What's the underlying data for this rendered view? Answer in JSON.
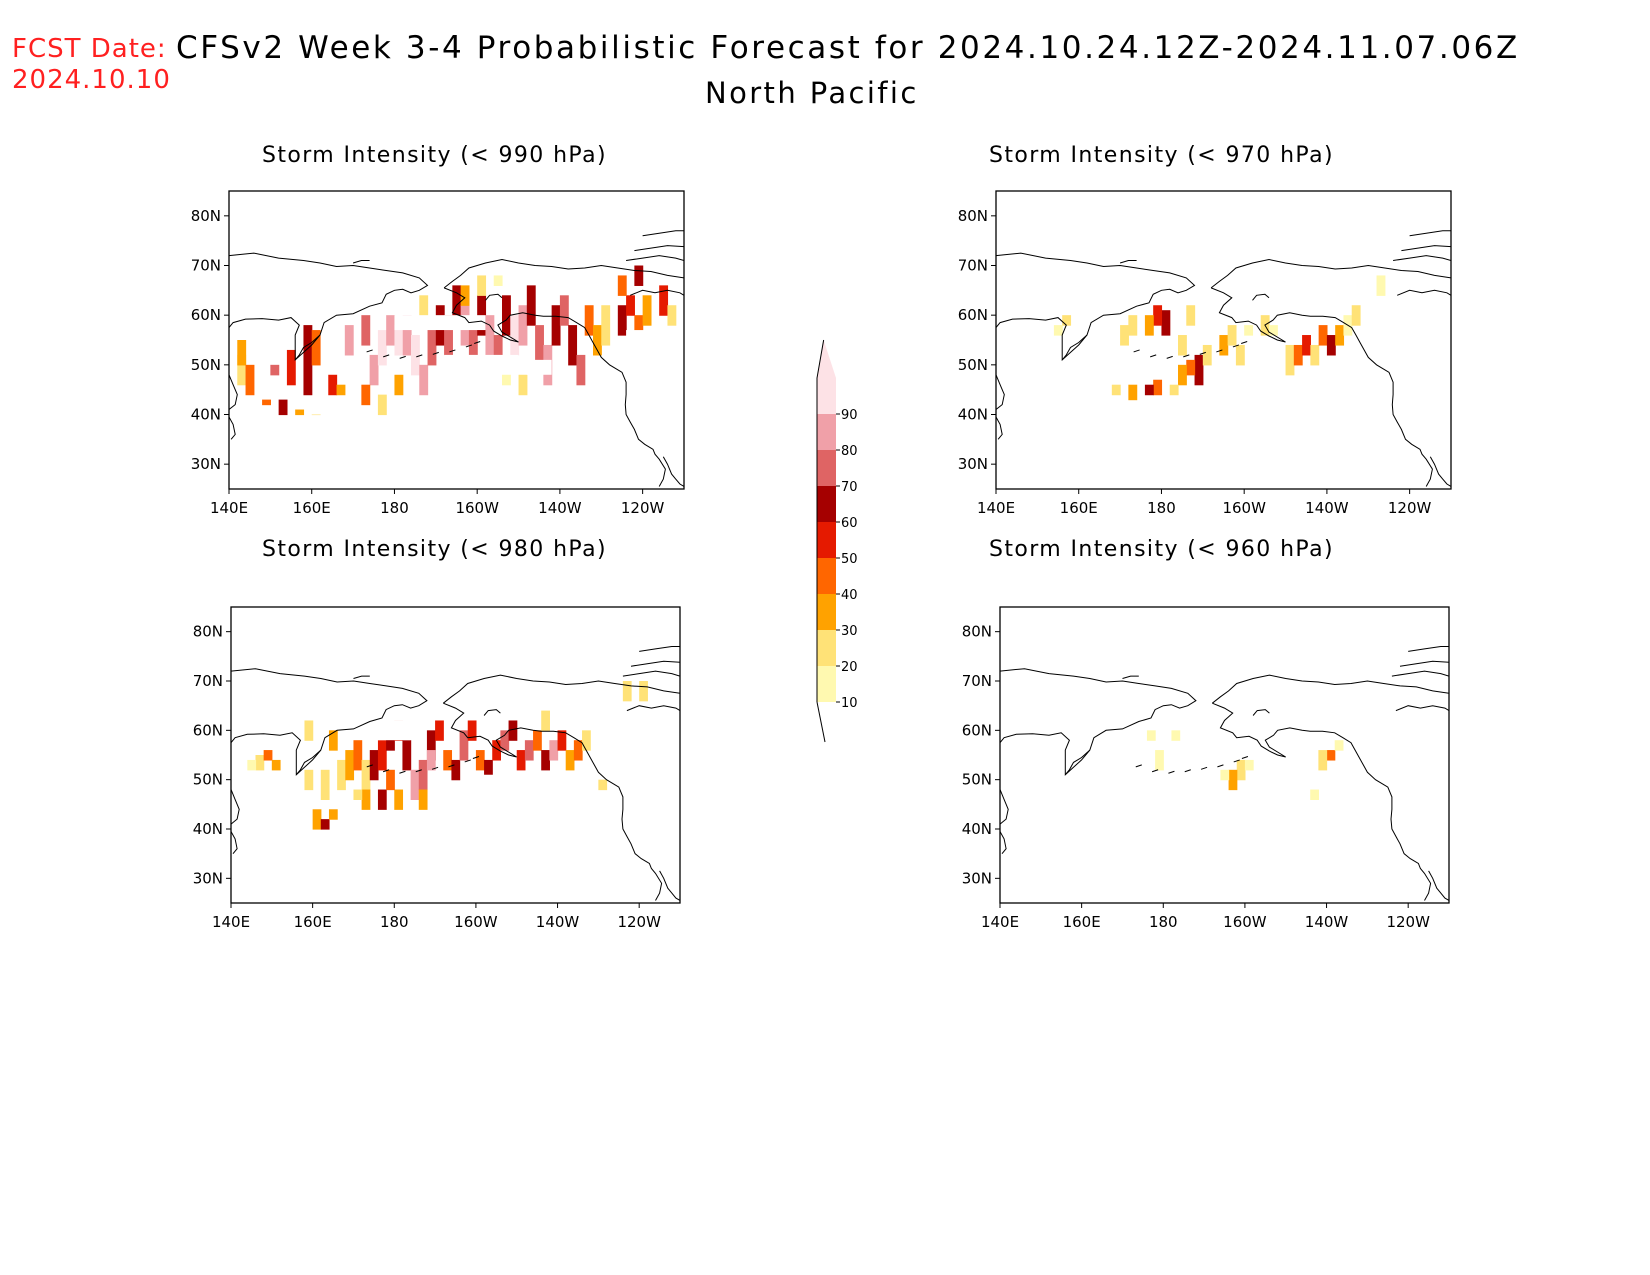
{
  "header": {
    "fcst_label": "FCST Date:",
    "fcst_date": "2024.10.10",
    "title": "CFSv2 Week 3-4 Probabilistic Forecast for 2024.10.24.12Z-2024.11.07.06Z",
    "subtitle": "North Pacific"
  },
  "colors": {
    "levels": [
      {
        "min": 10,
        "color": "#fff9b0"
      },
      {
        "min": 20,
        "color": "#ffe277"
      },
      {
        "min": 30,
        "color": "#ffa200"
      },
      {
        "min": 40,
        "color": "#ff6600"
      },
      {
        "min": 50,
        "color": "#e51a00"
      },
      {
        "min": 60,
        "color": "#a50000"
      },
      {
        "min": 70,
        "color": "#df6464"
      },
      {
        "min": 80,
        "color": "#f0a0a8"
      },
      {
        "min": 90,
        "color": "#fde2e6"
      }
    ]
  },
  "colorbar": {
    "labels": [
      "10",
      "20",
      "30",
      "40",
      "50",
      "60",
      "70",
      "80",
      "90"
    ]
  },
  "map_data": {
    "lon_range": [
      140,
      250
    ],
    "lat_range": [
      25,
      85
    ],
    "lon_ticks": [
      {
        "lon": 140,
        "label": "140E"
      },
      {
        "lon": 160,
        "label": "160E"
      },
      {
        "lon": 180,
        "label": "180"
      },
      {
        "lon": 200,
        "label": "160W"
      },
      {
        "lon": 220,
        "label": "140W"
      },
      {
        "lon": 240,
        "label": "120W"
      }
    ],
    "lat_ticks": [
      {
        "lat": 30,
        "label": "30N"
      },
      {
        "lat": 40,
        "label": "40N"
      },
      {
        "lat": 50,
        "label": "50N"
      },
      {
        "lat": 60,
        "label": "60N"
      },
      {
        "lat": 70,
        "label": "70N"
      },
      {
        "lat": 80,
        "label": "80N"
      }
    ],
    "panels": [
      {
        "id": "p990",
        "title": "Storm Intensity (< 990 hPa)",
        "cells": [
          [
            142,
            46,
            52,
            20
          ],
          [
            142,
            50,
            55,
            30
          ],
          [
            144,
            44,
            50,
            40
          ],
          [
            146,
            42,
            40,
            20
          ],
          [
            150,
            48,
            50,
            70
          ],
          [
            150,
            46,
            45,
            40
          ],
          [
            154,
            46,
            53,
            50
          ],
          [
            158,
            44,
            58,
            60
          ],
          [
            160,
            50,
            57,
            40
          ],
          [
            164,
            44,
            48,
            50
          ],
          [
            166,
            44,
            46,
            30
          ],
          [
            168,
            44,
            42,
            20
          ],
          [
            148,
            42,
            43,
            40
          ],
          [
            152,
            40,
            43,
            60
          ],
          [
            156,
            40,
            41,
            30
          ],
          [
            160,
            40,
            40,
            20
          ],
          [
            166,
            42,
            39,
            30
          ],
          [
            168,
            52,
            58,
            80
          ],
          [
            172,
            54,
            60,
            70
          ],
          [
            174,
            46,
            52,
            80
          ],
          [
            176,
            50,
            57,
            90
          ],
          [
            178,
            54,
            60,
            80
          ],
          [
            180,
            52,
            58,
            90
          ],
          [
            182,
            52,
            60,
            80
          ],
          [
            184,
            48,
            56,
            90
          ],
          [
            186,
            44,
            50,
            80
          ],
          [
            188,
            50,
            58,
            70
          ],
          [
            190,
            54,
            62,
            60
          ],
          [
            192,
            52,
            60,
            70
          ],
          [
            194,
            58,
            66,
            60
          ],
          [
            196,
            54,
            62,
            80
          ],
          [
            198,
            50,
            58,
            70
          ],
          [
            200,
            56,
            64,
            60
          ],
          [
            202,
            52,
            60,
            80
          ],
          [
            204,
            50,
            56,
            70
          ],
          [
            206,
            56,
            64,
            60
          ],
          [
            208,
            52,
            60,
            90
          ],
          [
            210,
            54,
            62,
            80
          ],
          [
            212,
            58,
            66,
            60
          ],
          [
            214,
            50,
            58,
            70
          ],
          [
            216,
            46,
            54,
            80
          ],
          [
            218,
            54,
            62,
            60
          ],
          [
            220,
            58,
            64,
            70
          ],
          [
            222,
            50,
            58,
            60
          ],
          [
            224,
            46,
            52,
            70
          ],
          [
            226,
            56,
            62,
            40
          ],
          [
            228,
            52,
            58,
            30
          ],
          [
            230,
            54,
            62,
            20
          ],
          [
            234,
            56,
            62,
            60
          ],
          [
            236,
            60,
            64,
            50
          ],
          [
            238,
            56,
            60,
            40
          ],
          [
            240,
            58,
            64,
            30
          ],
          [
            244,
            60,
            66,
            50
          ],
          [
            246,
            58,
            62,
            20
          ],
          [
            234,
            64,
            68,
            40
          ],
          [
            238,
            66,
            70,
            60
          ],
          [
            200,
            64,
            68,
            20
          ],
          [
            204,
            66,
            68,
            10
          ],
          [
            210,
            44,
            48,
            20
          ],
          [
            206,
            46,
            50,
            10
          ],
          [
            196,
            62,
            66,
            30
          ],
          [
            186,
            60,
            64,
            20
          ],
          [
            176,
            40,
            44,
            20
          ],
          [
            180,
            44,
            48,
            30
          ],
          [
            172,
            42,
            46,
            40
          ]
        ],
        "holes": [
          [
            180,
            202,
            57,
            60
          ],
          [
            236,
            250,
            48,
            57
          ],
          [
            192,
            210,
            48,
            52
          ],
          [
            212,
            218,
            48,
            51
          ]
        ]
      },
      {
        "id": "p970",
        "title": "Storm Intensity (< 970 hPa)",
        "cells": [
          [
            180,
            56,
            61,
            60
          ],
          [
            178,
            58,
            62,
            50
          ],
          [
            176,
            56,
            60,
            30
          ],
          [
            170,
            54,
            58,
            20
          ],
          [
            172,
            56,
            60,
            20
          ],
          [
            184,
            52,
            56,
            20
          ],
          [
            186,
            58,
            62,
            20
          ],
          [
            188,
            46,
            52,
            60
          ],
          [
            186,
            48,
            51,
            40
          ],
          [
            184,
            46,
            50,
            30
          ],
          [
            190,
            50,
            54,
            20
          ],
          [
            178,
            44,
            47,
            40
          ],
          [
            176,
            44,
            46,
            60
          ],
          [
            172,
            43,
            46,
            30
          ],
          [
            168,
            44,
            46,
            20
          ],
          [
            182,
            44,
            46,
            20
          ],
          [
            194,
            52,
            56,
            30
          ],
          [
            196,
            54,
            58,
            20
          ],
          [
            198,
            50,
            54,
            20
          ],
          [
            200,
            56,
            58,
            10
          ],
          [
            204,
            56,
            60,
            20
          ],
          [
            206,
            56,
            58,
            10
          ],
          [
            210,
            48,
            54,
            20
          ],
          [
            212,
            50,
            54,
            40
          ],
          [
            214,
            52,
            56,
            50
          ],
          [
            216,
            50,
            54,
            20
          ],
          [
            218,
            54,
            58,
            40
          ],
          [
            220,
            52,
            56,
            60
          ],
          [
            222,
            54,
            58,
            30
          ],
          [
            224,
            56,
            60,
            10
          ],
          [
            226,
            58,
            62,
            20
          ],
          [
            156,
            58,
            60,
            20
          ],
          [
            154,
            56,
            58,
            10
          ],
          [
            232,
            64,
            68,
            10
          ]
        ],
        "holes": []
      },
      {
        "id": "p980",
        "title": "Storm Intensity (< 980 hPa)",
        "cells": [
          [
            146,
            52,
            55,
            20
          ],
          [
            148,
            54,
            56,
            40
          ],
          [
            150,
            52,
            54,
            30
          ],
          [
            144,
            52,
            54,
            10
          ],
          [
            158,
            48,
            52,
            20
          ],
          [
            162,
            46,
            52,
            20
          ],
          [
            166,
            48,
            54,
            20
          ],
          [
            168,
            50,
            56,
            30
          ],
          [
            170,
            52,
            58,
            40
          ],
          [
            172,
            48,
            54,
            20
          ],
          [
            174,
            50,
            56,
            60
          ],
          [
            176,
            52,
            58,
            50
          ],
          [
            178,
            56,
            60,
            60
          ],
          [
            180,
            58,
            62,
            50
          ],
          [
            182,
            52,
            58,
            60
          ],
          [
            184,
            46,
            52,
            80
          ],
          [
            186,
            48,
            54,
            70
          ],
          [
            188,
            54,
            60,
            60
          ],
          [
            190,
            58,
            62,
            50
          ],
          [
            192,
            52,
            56,
            40
          ],
          [
            194,
            50,
            54,
            60
          ],
          [
            196,
            54,
            60,
            70
          ],
          [
            198,
            58,
            62,
            50
          ],
          [
            200,
            52,
            56,
            40
          ],
          [
            202,
            50,
            54,
            60
          ],
          [
            204,
            54,
            58,
            50
          ],
          [
            206,
            56,
            60,
            70
          ],
          [
            208,
            58,
            62,
            60
          ],
          [
            210,
            52,
            56,
            50
          ],
          [
            212,
            54,
            58,
            70
          ],
          [
            214,
            56,
            60,
            40
          ],
          [
            216,
            52,
            56,
            60
          ],
          [
            218,
            54,
            58,
            80
          ],
          [
            220,
            56,
            60,
            50
          ],
          [
            222,
            52,
            56,
            30
          ],
          [
            224,
            54,
            58,
            40
          ],
          [
            226,
            56,
            60,
            20
          ],
          [
            160,
            40,
            44,
            30
          ],
          [
            162,
            40,
            42,
            60
          ],
          [
            164,
            42,
            44,
            30
          ],
          [
            172,
            44,
            48,
            30
          ],
          [
            176,
            44,
            48,
            60
          ],
          [
            180,
            44,
            48,
            30
          ],
          [
            170,
            46,
            48,
            20
          ],
          [
            186,
            44,
            48,
            30
          ],
          [
            164,
            56,
            60,
            30
          ],
          [
            158,
            58,
            62,
            20
          ],
          [
            188,
            52,
            56,
            80
          ],
          [
            178,
            48,
            52,
            40
          ],
          [
            230,
            48,
            50,
            20
          ],
          [
            236,
            66,
            70,
            20
          ],
          [
            240,
            66,
            70,
            20
          ],
          [
            216,
            60,
            64,
            20
          ]
        ],
        "holes": [
          [
            176,
            184,
            58,
            62
          ],
          [
            200,
            208,
            48,
            51
          ]
        ]
      },
      {
        "id": "p960",
        "title": "Storm Intensity (< 960 hPa)",
        "cells": [
          [
            198,
            50,
            54,
            20
          ],
          [
            196,
            48,
            52,
            30
          ],
          [
            200,
            52,
            54,
            10
          ],
          [
            194,
            50,
            52,
            10
          ],
          [
            220,
            54,
            56,
            40
          ],
          [
            218,
            52,
            56,
            20
          ],
          [
            222,
            56,
            58,
            10
          ],
          [
            178,
            52,
            56,
            10
          ],
          [
            216,
            46,
            48,
            10
          ],
          [
            182,
            58,
            60,
            10
          ],
          [
            176,
            58,
            60,
            10
          ]
        ],
        "holes": []
      }
    ]
  }
}
